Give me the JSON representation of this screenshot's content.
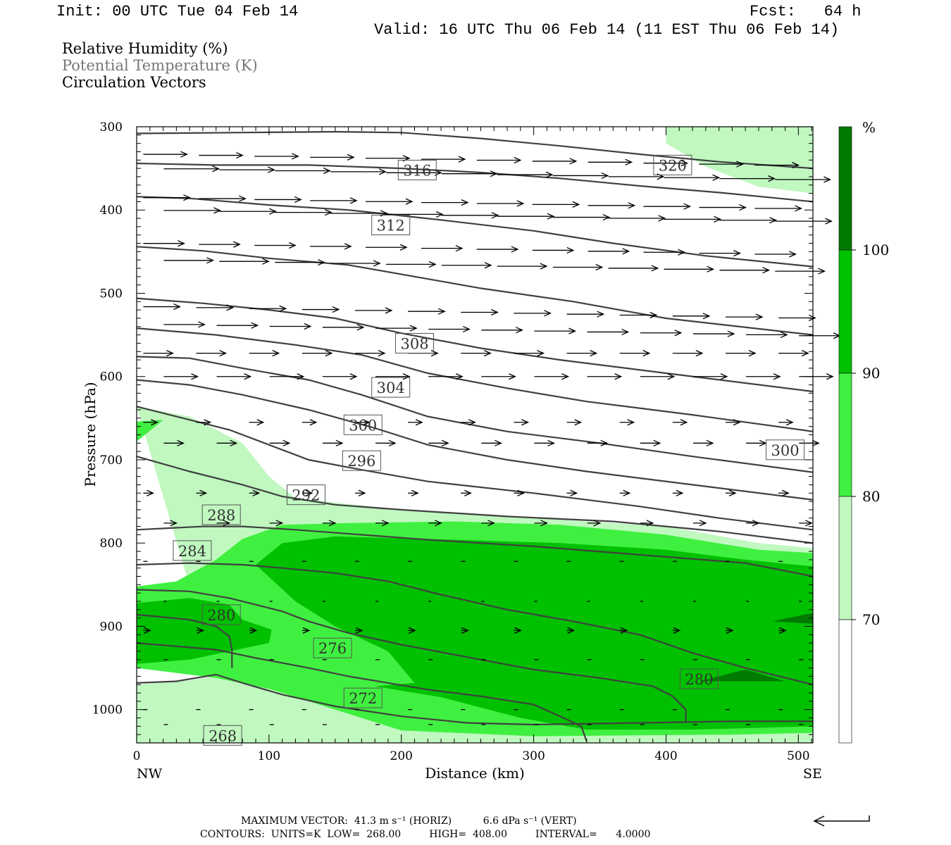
{
  "header": {
    "init": "Init: 00 UTC Tue 04 Feb 14",
    "fcst": "Fcst:   64 h",
    "valid": "Valid: 16 UTC Thu 06 Feb 14 (11 EST Thu 06 Feb 14)"
  },
  "legend_fields": {
    "rh": "Relative Humidity (%)",
    "theta": "Potential Temperature (K)",
    "circ": "Circulation Vectors"
  },
  "footer": {
    "line1": "MAXIMUM VECTOR:  41.3 m s⁻¹ (HORIZ)          6.6 dPa s⁻¹ (VERT)",
    "line2": "CONTOURS:  UNITS=K  LOW=  268.00         HIGH=  408.00         INTERVAL=      4.0000",
    "ref_vector": "reference-arrow"
  },
  "colors": {
    "rh_70_80": "#c0f8c0",
    "rh_80_90": "#40f040",
    "rh_90_100": "#00c000",
    "rh_100_plus": "#007a00",
    "contour": "#404040"
  },
  "chart_data": {
    "type": "cross-section",
    "xlabel": "Distance (km)",
    "ylabel": "Pressure (hPa)",
    "xlim": [
      0,
      511
    ],
    "ylim": [
      1040,
      300
    ],
    "x_ticks": [
      0,
      100,
      200,
      300,
      400,
      500
    ],
    "y_ticks": [
      300,
      400,
      500,
      600,
      700,
      800,
      900,
      1000
    ],
    "x_end_labels": {
      "left": "NW",
      "right": "SE"
    },
    "colorbar": {
      "unit": "%",
      "levels": [
        70,
        80,
        90,
        100
      ],
      "colors": [
        "#ffffff",
        "#c0f8c0",
        "#40f040",
        "#00c000",
        "#007a00"
      ]
    },
    "theta_contour_labels": [
      {
        "text": "320",
        "x": 405,
        "p": 346
      },
      {
        "text": "316",
        "x": 212,
        "p": 352
      },
      {
        "text": "312",
        "x": 192,
        "p": 418
      },
      {
        "text": "308",
        "x": 210,
        "p": 560
      },
      {
        "text": "304",
        "x": 192,
        "p": 613
      },
      {
        "text": "300",
        "x": 171,
        "p": 658
      },
      {
        "text": "296",
        "x": 170,
        "p": 701
      },
      {
        "text": "292",
        "x": 128,
        "p": 742
      },
      {
        "text": "288",
        "x": 64,
        "p": 766
      },
      {
        "text": "284",
        "x": 42,
        "p": 809
      },
      {
        "text": "280",
        "x": 64,
        "p": 886
      },
      {
        "text": "300",
        "x": 490,
        "p": 688
      },
      {
        "text": "276",
        "x": 148,
        "p": 926
      },
      {
        "text": "280",
        "x": 425,
        "p": 963
      },
      {
        "text": "272",
        "x": 171,
        "p": 986
      },
      {
        "text": "268",
        "x": 65,
        "p": 1031
      }
    ],
    "theta_lines": [
      [
        [
          0,
          308
        ],
        [
          75,
          307
        ],
        [
          150,
          306
        ],
        [
          200,
          307
        ],
        [
          260,
          314
        ],
        [
          320,
          323
        ],
        [
          380,
          333
        ],
        [
          440,
          342
        ],
        [
          511,
          350
        ]
      ],
      [
        [
          0,
          344
        ],
        [
          60,
          346
        ],
        [
          130,
          346
        ],
        [
          200,
          350
        ],
        [
          260,
          355
        ],
        [
          320,
          362
        ],
        [
          380,
          371
        ],
        [
          440,
          379
        ],
        [
          511,
          390
        ]
      ],
      [
        [
          0,
          384
        ],
        [
          40,
          386
        ],
        [
          100,
          394
        ],
        [
          160,
          400
        ],
        [
          230,
          412
        ],
        [
          300,
          425
        ],
        [
          360,
          440
        ],
        [
          430,
          455
        ],
        [
          511,
          468
        ]
      ],
      [
        [
          0,
          444
        ],
        [
          50,
          449
        ],
        [
          100,
          458
        ],
        [
          160,
          466
        ],
        [
          210,
          480
        ],
        [
          260,
          494
        ],
        [
          330,
          510
        ],
        [
          400,
          530
        ],
        [
          511,
          550
        ]
      ],
      [
        [
          0,
          506
        ],
        [
          50,
          512
        ],
        [
          100,
          520
        ],
        [
          150,
          530
        ],
        [
          200,
          548
        ],
        [
          260,
          566
        ],
        [
          320,
          580
        ],
        [
          400,
          596
        ],
        [
          511,
          618
        ]
      ],
      [
        [
          0,
          542
        ],
        [
          60,
          550
        ],
        [
          120,
          562
        ],
        [
          170,
          574
        ],
        [
          220,
          596
        ],
        [
          280,
          614
        ],
        [
          340,
          630
        ],
        [
          420,
          646
        ],
        [
          511,
          666
        ]
      ],
      [
        [
          0,
          576
        ],
        [
          40,
          578
        ],
        [
          80,
          590
        ],
        [
          130,
          604
        ],
        [
          170,
          622
        ],
        [
          220,
          648
        ],
        [
          280,
          666
        ],
        [
          350,
          680
        ],
        [
          420,
          696
        ],
        [
          511,
          715
        ]
      ],
      [
        [
          0,
          604
        ],
        [
          40,
          610
        ],
        [
          80,
          622
        ],
        [
          130,
          640
        ],
        [
          180,
          662
        ],
        [
          220,
          682
        ],
        [
          280,
          700
        ],
        [
          340,
          714
        ],
        [
          420,
          730
        ],
        [
          511,
          748
        ]
      ],
      [
        [
          0,
          636
        ],
        [
          40,
          652
        ],
        [
          70,
          664
        ],
        [
          100,
          682
        ],
        [
          130,
          700
        ],
        [
          170,
          712
        ],
        [
          220,
          726
        ],
        [
          300,
          740
        ],
        [
          380,
          756
        ],
        [
          440,
          770
        ],
        [
          511,
          784
        ]
      ],
      [
        [
          0,
          696
        ],
        [
          40,
          714
        ],
        [
          80,
          730
        ],
        [
          110,
          744
        ],
        [
          150,
          754
        ],
        [
          200,
          760
        ],
        [
          280,
          768
        ],
        [
          360,
          774
        ],
        [
          440,
          786
        ],
        [
          511,
          800
        ]
      ],
      [
        [
          0,
          784
        ],
        [
          50,
          780
        ],
        [
          80,
          780
        ],
        [
          120,
          784
        ],
        [
          170,
          790
        ],
        [
          220,
          796
        ],
        [
          300,
          804
        ],
        [
          380,
          814
        ],
        [
          460,
          824
        ],
        [
          511,
          840
        ]
      ],
      [
        [
          0,
          826
        ],
        [
          40,
          824
        ],
        [
          80,
          826
        ],
        [
          110,
          830
        ],
        [
          150,
          836
        ],
        [
          190,
          846
        ],
        [
          230,
          862
        ],
        [
          280,
          880
        ],
        [
          330,
          894
        ],
        [
          380,
          910
        ],
        [
          420,
          932
        ],
        [
          460,
          950
        ],
        [
          511,
          970
        ]
      ],
      [
        [
          0,
          856
        ],
        [
          40,
          858
        ],
        [
          70,
          866
        ],
        [
          90,
          874
        ],
        [
          110,
          882
        ],
        [
          130,
          894
        ],
        [
          160,
          908
        ],
        [
          200,
          922
        ],
        [
          240,
          934
        ],
        [
          300,
          952
        ],
        [
          350,
          962
        ],
        [
          390,
          972
        ],
        [
          405,
          984
        ],
        [
          415,
          1000
        ],
        [
          415,
          1016
        ]
      ],
      [
        [
          0,
          886
        ],
        [
          40,
          892
        ],
        [
          60,
          900
        ],
        [
          70,
          912
        ],
        [
          72,
          928
        ],
        [
          72,
          950
        ]
      ],
      [
        [
          0,
          920
        ],
        [
          30,
          924
        ],
        [
          60,
          928
        ],
        [
          90,
          938
        ],
        [
          130,
          950
        ],
        [
          160,
          960
        ],
        [
          190,
          968
        ],
        [
          220,
          976
        ],
        [
          260,
          984
        ],
        [
          300,
          994
        ],
        [
          320,
          1008
        ],
        [
          336,
          1020
        ],
        [
          340,
          1038
        ]
      ],
      [
        [
          0,
          968
        ],
        [
          30,
          966
        ],
        [
          60,
          958
        ],
        [
          80,
          968
        ],
        [
          110,
          982
        ],
        [
          150,
          996
        ],
        [
          200,
          1008
        ],
        [
          250,
          1016
        ],
        [
          300,
          1018
        ],
        [
          380,
          1016
        ],
        [
          450,
          1014
        ],
        [
          511,
          1014
        ]
      ]
    ],
    "vector_note": "Circulation vectors point roughly toward SE aloft (strong, ~41 m/s max) and weaken to near-calm below ~850 hPa"
  }
}
